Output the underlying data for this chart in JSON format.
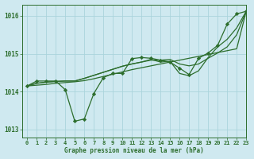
{
  "bg_color": "#cfe9f0",
  "grid_color": "#aad4dc",
  "line_color": "#2d6e2d",
  "xlabel": "Graphe pression niveau de la mer (hPa)",
  "xlim": [
    -0.5,
    23
  ],
  "ylim": [
    1012.8,
    1016.3
  ],
  "yticks": [
    1013,
    1014,
    1015,
    1016
  ],
  "xticks": [
    0,
    1,
    2,
    3,
    4,
    5,
    6,
    7,
    8,
    9,
    10,
    11,
    12,
    13,
    14,
    15,
    16,
    17,
    18,
    19,
    20,
    21,
    22,
    23
  ],
  "series_marker": [
    1014.15,
    1014.28,
    1014.28,
    1014.28,
    1014.05,
    1013.22,
    1013.28,
    1013.95,
    1014.37,
    1014.48,
    1014.48,
    1014.87,
    1014.9,
    1014.88,
    1014.83,
    1014.78,
    1014.62,
    1014.45,
    1014.88,
    1015.02,
    1015.22,
    1015.78,
    1016.05,
    1016.12
  ],
  "series_straight1": [
    1014.15,
    1014.17,
    1014.19,
    1014.22,
    1014.24,
    1014.26,
    1014.29,
    1014.34,
    1014.4,
    1014.46,
    1014.52,
    1014.58,
    1014.63,
    1014.68,
    1014.73,
    1014.78,
    1014.83,
    1014.88,
    1014.93,
    1014.98,
    1015.03,
    1015.08,
    1015.13,
    1016.12
  ],
  "series_wiggly1": [
    1014.15,
    1014.22,
    1014.25,
    1014.27,
    1014.28,
    1014.28,
    1014.35,
    1014.43,
    1014.51,
    1014.59,
    1014.67,
    1014.73,
    1014.78,
    1014.83,
    1014.83,
    1014.85,
    1014.73,
    1014.68,
    1014.73,
    1014.88,
    1015.02,
    1015.18,
    1015.5,
    1016.12
  ],
  "series_wiggly2": [
    1014.15,
    1014.22,
    1014.25,
    1014.27,
    1014.28,
    1014.28,
    1014.35,
    1014.43,
    1014.51,
    1014.59,
    1014.67,
    1014.73,
    1014.78,
    1014.85,
    1014.78,
    1014.8,
    1014.48,
    1014.42,
    1014.55,
    1014.9,
    1015.18,
    1015.38,
    1015.68,
    1016.12
  ]
}
